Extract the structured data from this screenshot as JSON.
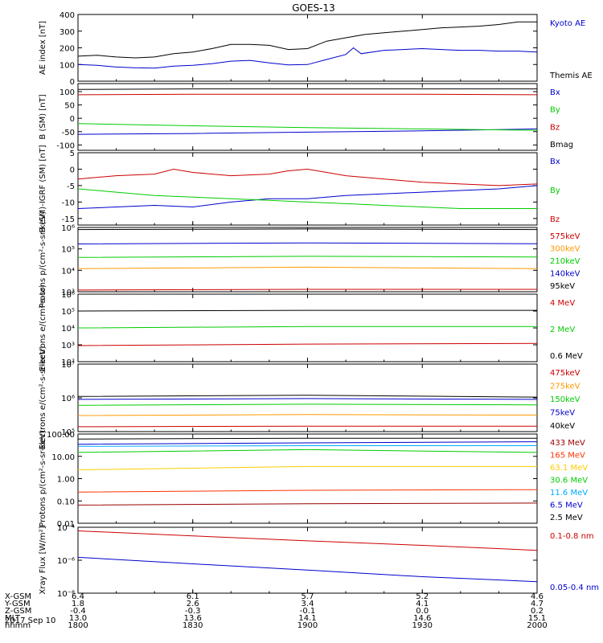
{
  "title": "GOES-13",
  "date": "2017 Sep 10",
  "bottom_table": {
    "row_labels": [
      "X-GSM",
      "Y-GSM",
      "Z-GSM",
      "MLT",
      "hhmm"
    ],
    "columns": [
      [
        "6.4",
        "1.8",
        "-0.4",
        "13.0",
        "1800"
      ],
      [
        "6.1",
        "2.6",
        "-0.3",
        "13.6",
        "1830"
      ],
      [
        "5.7",
        "3.4",
        "-0.1",
        "14.1",
        "1900"
      ],
      [
        "5.2",
        "4.1",
        "0.0",
        "14.6",
        "1930"
      ],
      [
        "4.6",
        "4.7",
        "0.2",
        "15.1",
        "2000"
      ]
    ]
  },
  "chart_data": [
    {
      "type": "line",
      "ylabel": "AE index [nT]",
      "ylim": [
        0,
        400
      ],
      "yticks": [
        "0",
        "100",
        "200",
        "300",
        "400"
      ],
      "x": [
        "1800",
        "1830",
        "1900",
        "1930",
        "2000"
      ],
      "series": [
        {
          "name": "Kyoto AE",
          "color": "#0000cc",
          "points": [
            [
              0,
              100
            ],
            [
              5,
              95
            ],
            [
              10,
              85
            ],
            [
              15,
              80
            ],
            [
              20,
              78
            ],
            [
              25,
              90
            ],
            [
              30,
              95
            ],
            [
              35,
              105
            ],
            [
              40,
              120
            ],
            [
              45,
              125
            ],
            [
              50,
              110
            ],
            [
              55,
              98
            ],
            [
              60,
              100
            ],
            [
              65,
              130
            ],
            [
              70,
              160
            ],
            [
              72,
              200
            ],
            [
              74,
              165
            ],
            [
              80,
              185
            ],
            [
              85,
              190
            ],
            [
              90,
              195
            ],
            [
              95,
              190
            ],
            [
              100,
              185
            ],
            [
              105,
              185
            ],
            [
              110,
              180
            ],
            [
              115,
              180
            ],
            [
              120,
              175
            ]
          ]
        },
        {
          "name": "Themis AE",
          "color": "#000000",
          "points": [
            [
              0,
              150
            ],
            [
              5,
              155
            ],
            [
              10,
              145
            ],
            [
              15,
              140
            ],
            [
              20,
              145
            ],
            [
              25,
              165
            ],
            [
              30,
              175
            ],
            [
              35,
              195
            ],
            [
              40,
              220
            ],
            [
              45,
              220
            ],
            [
              50,
              215
            ],
            [
              55,
              190
            ],
            [
              60,
              195
            ],
            [
              65,
              240
            ],
            [
              70,
              260
            ],
            [
              75,
              280
            ],
            [
              80,
              290
            ],
            [
              85,
              300
            ],
            [
              90,
              310
            ],
            [
              95,
              320
            ],
            [
              100,
              325
            ],
            [
              105,
              330
            ],
            [
              110,
              340
            ],
            [
              115,
              355
            ],
            [
              120,
              355
            ]
          ]
        }
      ]
    },
    {
      "type": "line",
      "ylabel": "B (SM) [nT]",
      "ylim": [
        -120,
        130
      ],
      "yticks": [
        "-100",
        "-50",
        "0",
        "50",
        "100"
      ],
      "x": [
        "1800",
        "1830",
        "1900",
        "1930",
        "2000"
      ],
      "series": [
        {
          "name": "Bx",
          "color": "#0000cc",
          "points": [
            [
              0,
              -60
            ],
            [
              30,
              -57
            ],
            [
              60,
              -52
            ],
            [
              90,
              -47
            ],
            [
              120,
              -40
            ]
          ]
        },
        {
          "name": "By",
          "color": "#00cc00",
          "points": [
            [
              0,
              -20
            ],
            [
              30,
              -28
            ],
            [
              60,
              -35
            ],
            [
              90,
              -40
            ],
            [
              120,
              -45
            ]
          ]
        },
        {
          "name": "Bz",
          "color": "#cc0000",
          "points": [
            [
              0,
              88
            ],
            [
              30,
              90
            ],
            [
              60,
              90
            ],
            [
              90,
              90
            ],
            [
              120,
              88
            ]
          ]
        },
        {
          "name": "Bmag",
          "color": "#000000",
          "points": [
            [
              0,
              108
            ],
            [
              30,
              110
            ],
            [
              60,
              110
            ],
            [
              90,
              110
            ],
            [
              120,
              110
            ]
          ]
        }
      ]
    },
    {
      "type": "line",
      "ylabel": "B (SM)-IGRF (SM) [nT]",
      "ylim": [
        -17,
        5
      ],
      "yticks": [
        "-15",
        "-10",
        "-5",
        "0",
        "5"
      ],
      "x": [
        "1800",
        "1830",
        "1900",
        "1930",
        "2000"
      ],
      "series": [
        {
          "name": "Bx",
          "color": "#0000cc",
          "points": [
            [
              0,
              -12
            ],
            [
              10,
              -11.5
            ],
            [
              20,
              -11
            ],
            [
              30,
              -11.5
            ],
            [
              40,
              -10
            ],
            [
              50,
              -9
            ],
            [
              60,
              -9
            ],
            [
              70,
              -8
            ],
            [
              80,
              -7.5
            ],
            [
              90,
              -7
            ],
            [
              100,
              -6.5
            ],
            [
              110,
              -6
            ],
            [
              120,
              -5
            ]
          ]
        },
        {
          "name": "By",
          "color": "#00cc00",
          "points": [
            [
              0,
              -6
            ],
            [
              10,
              -7
            ],
            [
              20,
              -8
            ],
            [
              30,
              -8.5
            ],
            [
              40,
              -9
            ],
            [
              50,
              -9.5
            ],
            [
              60,
              -10
            ],
            [
              70,
              -10.5
            ],
            [
              80,
              -11
            ],
            [
              90,
              -11.5
            ],
            [
              100,
              -12
            ],
            [
              110,
              -12
            ],
            [
              120,
              -12
            ]
          ]
        },
        {
          "name": "Bz",
          "color": "#cc0000",
          "points": [
            [
              0,
              -3
            ],
            [
              10,
              -2
            ],
            [
              20,
              -1.5
            ],
            [
              25,
              0
            ],
            [
              30,
              -1
            ],
            [
              40,
              -2
            ],
            [
              50,
              -1.5
            ],
            [
              55,
              -0.5
            ],
            [
              60,
              0
            ],
            [
              65,
              -1
            ],
            [
              70,
              -2
            ],
            [
              80,
              -3
            ],
            [
              90,
              -4
            ],
            [
              100,
              -4.5
            ],
            [
              110,
              -5
            ],
            [
              120,
              -4.5
            ]
          ]
        }
      ]
    },
    {
      "type": "line",
      "ylabel": "Protons p/(cm²-s-sr-keV)",
      "log": true,
      "ylim": [
        1000,
        1000000
      ],
      "yticks": [
        "10³",
        "10⁴",
        "10⁵",
        "10⁶"
      ],
      "x": [
        "1800",
        "1830",
        "1900",
        "1930",
        "2000"
      ],
      "series": [
        {
          "name": "575keV",
          "color": "#cc0000",
          "points": [
            [
              0,
              1200
            ],
            [
              60,
              1300
            ],
            [
              120,
              1300
            ]
          ]
        },
        {
          "name": "300keV",
          "color": "#ff9900",
          "points": [
            [
              0,
              12000
            ],
            [
              60,
              14000
            ],
            [
              120,
              12000
            ]
          ]
        },
        {
          "name": "210keV",
          "color": "#00cc00",
          "points": [
            [
              0,
              40000
            ],
            [
              60,
              45000
            ],
            [
              120,
              42000
            ]
          ]
        },
        {
          "name": "140keV",
          "color": "#0000cc",
          "points": [
            [
              0,
              170000
            ],
            [
              60,
              190000
            ],
            [
              120,
              175000
            ]
          ]
        },
        {
          "name": "95keV",
          "color": "#000000",
          "points": [
            [
              0,
              800000
            ],
            [
              60,
              850000
            ],
            [
              120,
              800000
            ]
          ]
        }
      ]
    },
    {
      "type": "line",
      "ylabel": "Electrons e/(cm²-s-sr)",
      "log": true,
      "ylim": [
        100,
        1000000
      ],
      "yticks": [
        "10²",
        "10³",
        "10⁴",
        "10⁵",
        "10⁶"
      ],
      "x": [
        "1800",
        "1830",
        "1900",
        "1930",
        "2000"
      ],
      "series": [
        {
          "name": "4 MeV",
          "color": "#cc0000",
          "points": [
            [
              0,
              900
            ],
            [
              60,
              1100
            ],
            [
              120,
              1200
            ]
          ]
        },
        {
          "name": "2 MeV",
          "color": "#00cc00",
          "points": [
            [
              0,
              10000
            ],
            [
              60,
              12000
            ],
            [
              120,
              12000
            ]
          ]
        },
        {
          "name": "0.6 MeV",
          "color": "#000000",
          "points": [
            [
              0,
              100000
            ],
            [
              60,
              110000
            ],
            [
              120,
              110000
            ]
          ]
        }
      ]
    },
    {
      "type": "line",
      "ylabel": "Electrons e/(cm²-s-sr-keV)",
      "log": true,
      "ylim": [
        100000,
        10000000
      ],
      "yticks": [
        "10⁵",
        "10⁶",
        "10⁷"
      ],
      "x": [
        "1800",
        "1830",
        "1900",
        "1930",
        "2000"
      ],
      "series": [
        {
          "name": "475keV",
          "color": "#cc0000",
          "points": [
            [
              0,
              140000
            ],
            [
              60,
              145000
            ],
            [
              120,
              145000
            ]
          ]
        },
        {
          "name": "275keV",
          "color": "#ff9900",
          "points": [
            [
              0,
              300000
            ],
            [
              60,
              320000
            ],
            [
              120,
              310000
            ]
          ]
        },
        {
          "name": "150keV",
          "color": "#00cc00",
          "points": [
            [
              0,
              600000
            ],
            [
              60,
              650000
            ],
            [
              120,
              620000
            ]
          ]
        },
        {
          "name": "75keV",
          "color": "#0000cc",
          "points": [
            [
              0,
              900000
            ],
            [
              60,
              950000
            ],
            [
              120,
              900000
            ]
          ]
        },
        {
          "name": "40keV",
          "color": "#000000",
          "points": [
            [
              0,
              1100000
            ],
            [
              60,
              1200000
            ],
            [
              120,
              1050000
            ]
          ]
        }
      ]
    },
    {
      "type": "line",
      "ylabel": "Protons p/(cm²-s-sr-keV)",
      "log": true,
      "ylim": [
        0.01,
        100
      ],
      "yticks": [
        "0.01",
        "0.10",
        "1.00",
        "10.00",
        "100.00"
      ],
      "x": [
        "1800",
        "1830",
        "1900",
        "1930",
        "2000"
      ],
      "series": [
        {
          "name": "433 MeV",
          "color": "#990000",
          "points": [
            [
              0,
              0.065
            ],
            [
              60,
              0.075
            ],
            [
              120,
              0.08
            ]
          ]
        },
        {
          "name": "165 MeV",
          "color": "#ff3300",
          "points": [
            [
              0,
              0.25
            ],
            [
              60,
              0.3
            ],
            [
              120,
              0.32
            ]
          ]
        },
        {
          "name": "63.1 MeV",
          "color": "#ffcc00",
          "points": [
            [
              0,
              2.5
            ],
            [
              60,
              3.5
            ],
            [
              120,
              3.5
            ]
          ]
        },
        {
          "name": "30.6 MeV",
          "color": "#00cc00",
          "points": [
            [
              0,
              15
            ],
            [
              60,
              20
            ],
            [
              120,
              15
            ]
          ]
        },
        {
          "name": "11.6 MeV",
          "color": "#00aaff",
          "points": [
            [
              0,
              28
            ],
            [
              60,
              30
            ],
            [
              120,
              30
            ]
          ]
        },
        {
          "name": "6.5 MeV",
          "color": "#0000cc",
          "points": [
            [
              0,
              35
            ],
            [
              60,
              40
            ],
            [
              120,
              45
            ]
          ]
        },
        {
          "name": "2.5 MeV",
          "color": "#000000",
          "points": [
            [
              0,
              60
            ],
            [
              60,
              65
            ],
            [
              120,
              65
            ]
          ]
        }
      ]
    },
    {
      "type": "line",
      "ylabel": "Xray Flux [W/m²]",
      "log": true,
      "ylim": [
        1e-08,
        0.0001
      ],
      "yticks": [
        "10⁻⁸",
        "10⁻⁶",
        "10⁻⁴"
      ],
      "x": [
        "1800",
        "1830",
        "1900",
        "1930",
        "2000"
      ],
      "series": [
        {
          "name": "0.1-0.8 nm",
          "color": "#cc0000",
          "points": [
            [
              0,
              6e-05
            ],
            [
              30,
              3e-05
            ],
            [
              60,
              1.5e-05
            ],
            [
              90,
              8e-06
            ],
            [
              120,
              4e-06
            ]
          ]
        },
        {
          "name": "0.05-0.4 nm",
          "color": "#0000cc",
          "points": [
            [
              0,
              1.5e-06
            ],
            [
              30,
              6e-07
            ],
            [
              60,
              2.5e-07
            ],
            [
              90,
              1e-07
            ],
            [
              120,
              5e-08
            ]
          ]
        }
      ]
    }
  ]
}
